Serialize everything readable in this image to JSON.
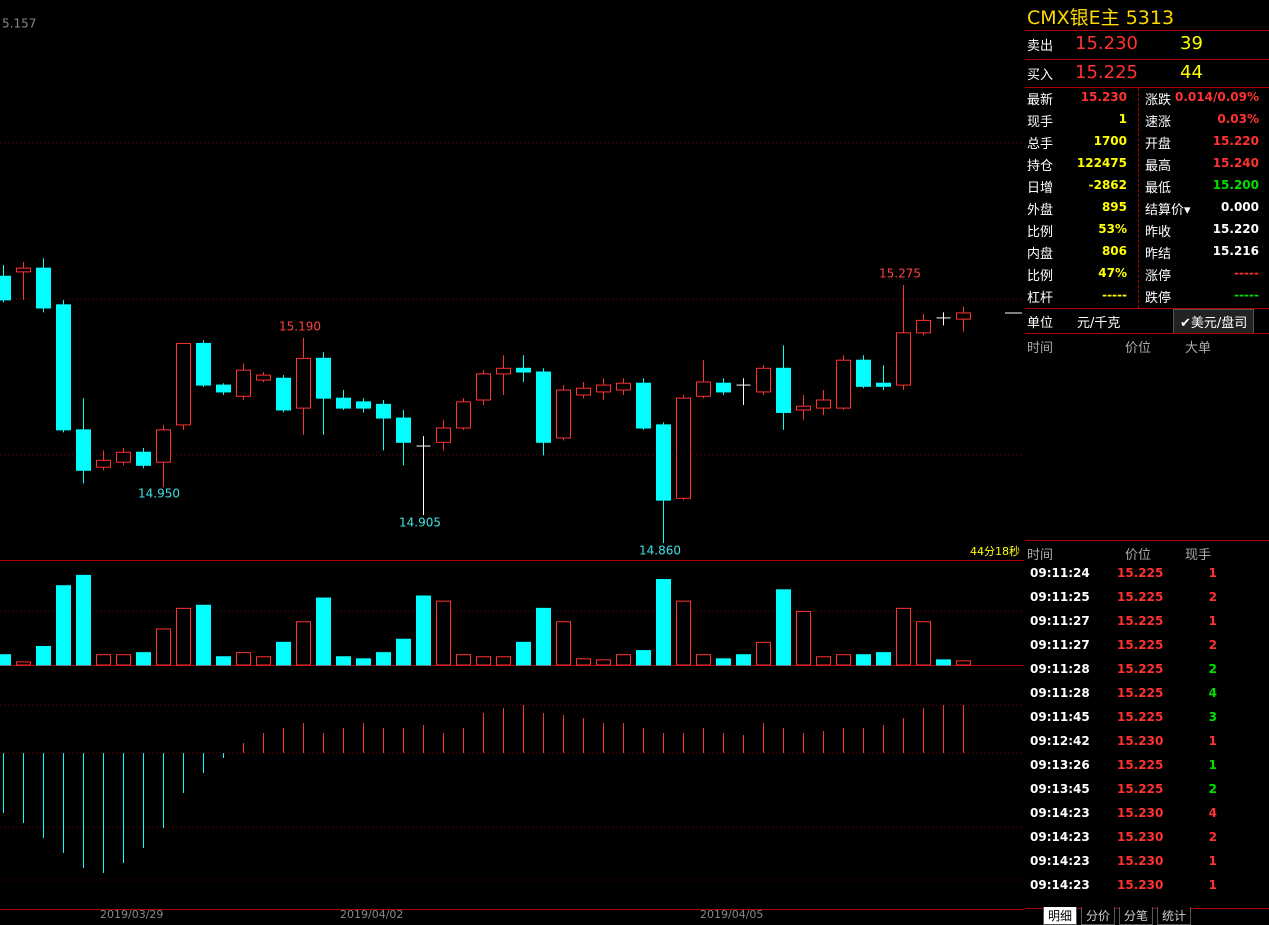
{
  "chart_data": {
    "type": "candlestick",
    "corner_label": "5.157",
    "ylim": [
      14.836,
      15.709
    ],
    "up_color": "#ff3232",
    "down_color": "#00ffff",
    "open": [
      15.289,
      15.296,
      15.302,
      15.243,
      15.042,
      14.982,
      14.99,
      15.006,
      14.99,
      15.05,
      15.181,
      15.114,
      15.096,
      15.122,
      15.125,
      15.077,
      15.157,
      15.093,
      15.087,
      15.083,
      15.061,
      15.016,
      15.022,
      15.045,
      15.09,
      15.132,
      15.141,
      15.135,
      15.029,
      15.098,
      15.103,
      15.106,
      15.117,
      15.05,
      14.932,
      15.096,
      15.117,
      15.114,
      15.103,
      15.141,
      15.074,
      15.077,
      15.077,
      15.154,
      15.117,
      15.114,
      15.198,
      15.222,
      15.22
    ],
    "high": [
      15.307,
      15.312,
      15.318,
      15.251,
      15.093,
      15.009,
      15.013,
      15.013,
      15.05,
      15.181,
      15.186,
      15.117,
      15.149,
      15.135,
      15.13,
      15.19,
      15.167,
      15.106,
      15.093,
      15.09,
      15.074,
      15.032,
      15.058,
      15.093,
      15.138,
      15.162,
      15.162,
      15.141,
      15.114,
      15.119,
      15.125,
      15.125,
      15.125,
      15.054,
      15.098,
      15.154,
      15.125,
      15.125,
      15.146,
      15.178,
      15.098,
      15.106,
      15.162,
      15.162,
      15.146,
      15.275,
      15.228,
      15.231,
      15.24
    ],
    "low": [
      15.247,
      15.251,
      15.231,
      15.038,
      14.956,
      14.977,
      14.985,
      14.98,
      14.95,
      15.042,
      15.111,
      15.098,
      15.09,
      15.119,
      15.07,
      15.034,
      15.034,
      15.074,
      15.07,
      15.009,
      14.985,
      14.905,
      15.009,
      15.042,
      15.082,
      15.098,
      15.119,
      15.001,
      15.025,
      15.093,
      15.09,
      15.098,
      15.042,
      14.86,
      14.929,
      15.093,
      15.098,
      15.082,
      15.098,
      15.042,
      15.058,
      15.066,
      15.074,
      15.109,
      15.106,
      15.106,
      15.194,
      15.21,
      15.2
    ],
    "close": [
      15.251,
      15.302,
      15.238,
      15.042,
      14.977,
      14.993,
      15.006,
      14.985,
      15.042,
      15.181,
      15.114,
      15.103,
      15.138,
      15.13,
      15.074,
      15.157,
      15.093,
      15.077,
      15.077,
      15.061,
      15.022,
      15.016,
      15.045,
      15.087,
      15.132,
      15.141,
      15.135,
      15.022,
      15.106,
      15.109,
      15.114,
      15.117,
      15.045,
      14.929,
      15.093,
      15.119,
      15.103,
      15.114,
      15.141,
      15.07,
      15.08,
      15.09,
      15.154,
      15.112,
      15.112,
      15.198,
      15.218,
      15.222,
      15.23
    ],
    "annotations": [
      "15.275",
      "15.190",
      "14.950",
      "14.905",
      "14.860"
    ],
    "dates": [
      "2019/03/29",
      "2019/04/02",
      "2019/04/05"
    ],
    "timer": "44分18秒",
    "volume": {
      "ylim": [
        0,
        100
      ],
      "values": [
        10,
        3,
        18,
        77,
        87,
        10,
        10,
        12,
        35,
        55,
        58,
        8,
        12,
        8,
        22,
        42,
        65,
        8,
        6,
        12,
        25,
        67,
        62,
        10,
        8,
        8,
        22,
        55,
        42,
        6,
        5,
        10,
        14,
        83,
        62,
        10,
        6,
        10,
        22,
        73,
        52,
        8,
        10,
        10,
        12,
        55,
        42,
        5,
        4
      ]
    },
    "macd": {
      "ylim": [
        -157,
        85
      ],
      "values": [
        -60,
        -70,
        -85,
        -100,
        -115,
        -120,
        -110,
        -95,
        -75,
        -40,
        -20,
        -5,
        10,
        20,
        25,
        30,
        20,
        25,
        30,
        25,
        25,
        28,
        20,
        25,
        40,
        45,
        48,
        40,
        38,
        35,
        30,
        30,
        25,
        20,
        20,
        25,
        20,
        18,
        30,
        25,
        20,
        22,
        25,
        25,
        28,
        35,
        45,
        48,
        48
      ]
    }
  },
  "panel": {
    "title": "CMX银E主  5313",
    "sell": {
      "label": "卖出",
      "price": "15.230",
      "qty": "39"
    },
    "buy": {
      "label": "买入",
      "price": "15.225",
      "qty": "44"
    },
    "stats": [
      [
        {
          "label": "最新",
          "value": "15.230",
          "color": "#ff3232"
        },
        {
          "label": "涨跌",
          "value": "0.014/0.09%",
          "color": "#ff3232"
        }
      ],
      [
        {
          "label": "现手",
          "value": "1",
          "color": "#ffff00"
        },
        {
          "label": "速涨",
          "value": "0.03%",
          "color": "#ff3232"
        }
      ],
      [
        {
          "label": "总手",
          "value": "1700",
          "color": "#ffff00"
        },
        {
          "label": "开盘",
          "value": "15.220",
          "color": "#ff3232"
        }
      ],
      [
        {
          "label": "持仓",
          "value": "122475",
          "color": "#ffff00"
        },
        {
          "label": "最高",
          "value": "15.240",
          "color": "#ff3232"
        }
      ],
      [
        {
          "label": "日增",
          "value": "-2862",
          "color": "#ffff00"
        },
        {
          "label": "最低",
          "value": "15.200",
          "color": "#00e000"
        }
      ],
      [
        {
          "label": "外盘",
          "value": "895",
          "color": "#ffff00"
        },
        {
          "label": "结算价▾",
          "value": "0.000",
          "color": "#ffffff"
        }
      ],
      [
        {
          "label": "比例",
          "value": "53%",
          "color": "#ffff00"
        },
        {
          "label": "昨收",
          "value": "15.220",
          "color": "#ffffff"
        }
      ],
      [
        {
          "label": "内盘",
          "value": "806",
          "color": "#ffff00"
        },
        {
          "label": "昨结",
          "value": "15.216",
          "color": "#ffffff"
        }
      ],
      [
        {
          "label": "比例",
          "value": "47%",
          "color": "#ffff00"
        },
        {
          "label": "涨停",
          "value": "-----",
          "color": "#ff3232"
        }
      ],
      [
        {
          "label": "杠杆",
          "value": "-----",
          "color": "#ffff00"
        },
        {
          "label": "跌停",
          "value": "-----",
          "color": "#00e000"
        }
      ]
    ],
    "unit": {
      "label": "单位",
      "a": "元/千克",
      "b": "✔美元/盘司"
    },
    "big_header": [
      "时间",
      "价位",
      "大单"
    ],
    "trade_header": [
      "时间",
      "价位",
      "现手"
    ],
    "trades": [
      [
        "09:11:24",
        "15.225",
        "1",
        "#ff3232"
      ],
      [
        "09:11:25",
        "15.225",
        "2",
        "#ff3232"
      ],
      [
        "09:11:27",
        "15.225",
        "1",
        "#ff3232"
      ],
      [
        "09:11:27",
        "15.225",
        "2",
        "#ff3232"
      ],
      [
        "09:11:28",
        "15.225",
        "2",
        "#00e000"
      ],
      [
        "09:11:28",
        "15.225",
        "4",
        "#00e000"
      ],
      [
        "09:11:45",
        "15.225",
        "3",
        "#00e000"
      ],
      [
        "09:12:42",
        "15.230",
        "1",
        "#ff3232"
      ],
      [
        "09:13:26",
        "15.225",
        "1",
        "#00e000"
      ],
      [
        "09:13:45",
        "15.225",
        "2",
        "#00e000"
      ],
      [
        "09:14:23",
        "15.230",
        "4",
        "#ff3232"
      ],
      [
        "09:14:23",
        "15.230",
        "2",
        "#ff3232"
      ],
      [
        "09:14:23",
        "15.230",
        "1",
        "#ff3232"
      ],
      [
        "09:14:23",
        "15.230",
        "1",
        "#ff3232"
      ]
    ],
    "tabs": [
      "明细",
      "分价",
      "分笔",
      "统计"
    ]
  }
}
